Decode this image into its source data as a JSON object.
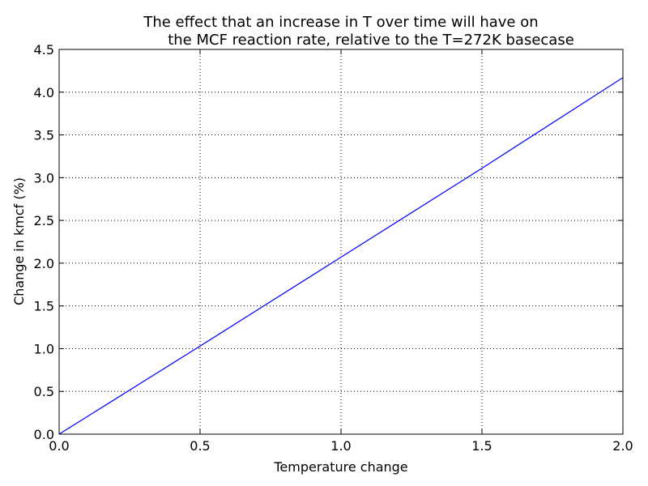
{
  "chart_data": {
    "type": "line",
    "title_lines": [
      "The effect that an increase in T over time will have on",
      "the MCF reaction rate, relative to the T=272K basecase"
    ],
    "xlabel": "Temperature change",
    "ylabel": "Change in kmcf (%)",
    "xlim": [
      0.0,
      2.0
    ],
    "ylim": [
      0.0,
      4.5
    ],
    "x_ticks": [
      "0.0",
      "0.5",
      "1.0",
      "1.5",
      "2.0"
    ],
    "y_ticks": [
      "0.0",
      "0.5",
      "1.0",
      "1.5",
      "2.0",
      "2.5",
      "3.0",
      "3.5",
      "4.0",
      "4.5"
    ],
    "grid": true,
    "series": [
      {
        "color": "#0000ff",
        "x": [
          0.0,
          0.5,
          1.0,
          1.5,
          2.0
        ],
        "y": [
          0.0,
          1.03,
          2.07,
          3.11,
          4.17
        ]
      }
    ]
  }
}
